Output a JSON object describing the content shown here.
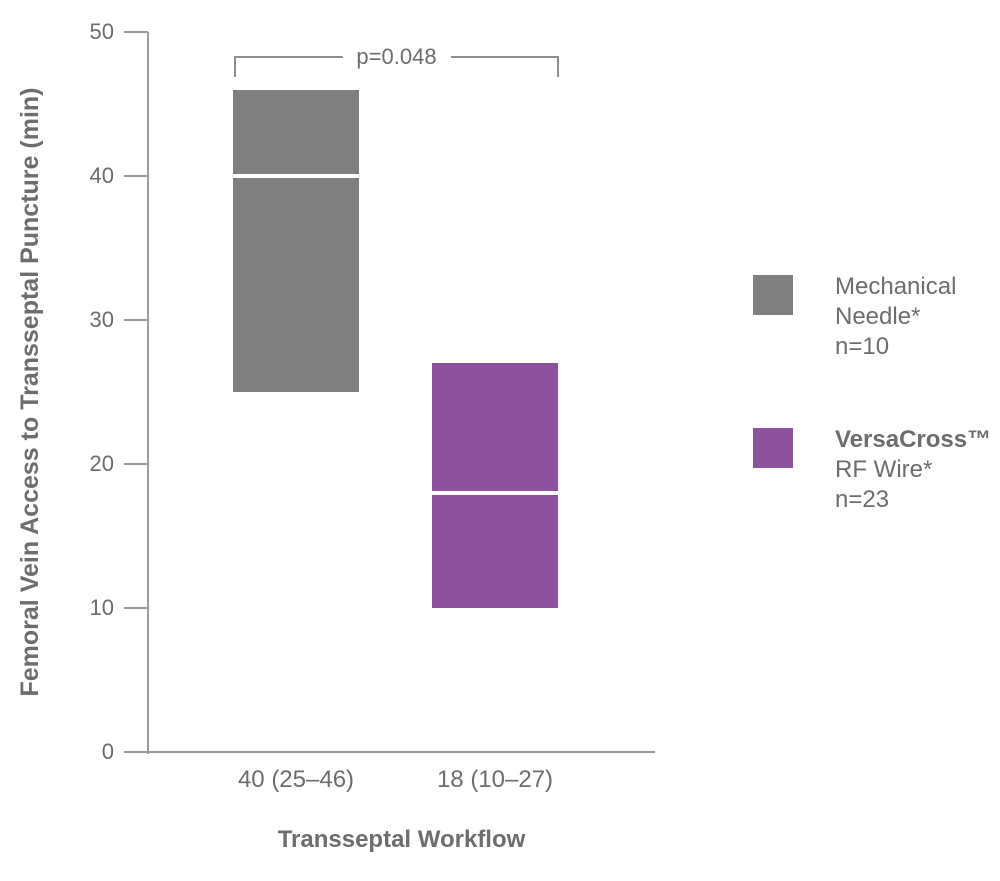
{
  "chart_data": {
    "type": "box",
    "title": "",
    "xlabel": "Transseptal Workflow",
    "ylabel": "Femoral Vein Access to Transseptal Puncture (min)",
    "ylim": [
      0,
      50
    ],
    "yticks": [
      0,
      10,
      20,
      30,
      40,
      50
    ],
    "grid": false,
    "legend_position": "right",
    "significance": {
      "label": "p=0.048"
    },
    "series": [
      {
        "name": "Mechanical Needle*",
        "n": 10,
        "median": 40,
        "range_low": 25,
        "range_high": 46,
        "x_label": "40 (25–46)",
        "color": "#808080",
        "legend": {
          "lines": [
            {
              "text": "Mechanical",
              "bold": false
            },
            {
              "text": "Needle*",
              "bold": false
            },
            {
              "text": "n=10",
              "bold": false
            }
          ]
        }
      },
      {
        "name": "VersaCross™ RF Wire*",
        "n": 23,
        "median": 18,
        "range_low": 10,
        "range_high": 27,
        "x_label": "18 (10–27)",
        "color": "#8d529d",
        "legend": {
          "lines": [
            {
              "text": "VersaCross™",
              "bold": true
            },
            {
              "text": "RF Wire*",
              "bold": false
            },
            {
              "text": "n=23",
              "bold": false
            }
          ]
        }
      }
    ]
  },
  "colors": {
    "background": "#ffffff",
    "axis": "#9b9b9b",
    "text": "#6d6d6d",
    "bracket": "#8f8f8f",
    "median_line": "#ffffff"
  }
}
